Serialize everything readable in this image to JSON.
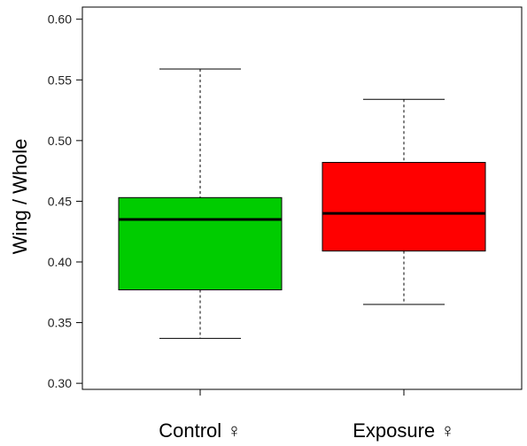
{
  "chart_data": {
    "type": "boxplot",
    "title": "",
    "xlabel": "",
    "ylabel": "Wing / Whole",
    "ylim": [
      0.295,
      0.61
    ],
    "yticks": [
      "0.30",
      "0.35",
      "0.40",
      "0.45",
      "0.50",
      "0.55",
      "0.60"
    ],
    "grid": false,
    "legend": "none",
    "categories": [
      "Control ♀",
      "Exposure ♀"
    ],
    "boxes": [
      {
        "category": "Control ♀",
        "min": 0.337,
        "q1": 0.377,
        "median": 0.435,
        "q3": 0.453,
        "max": 0.559,
        "color": "#00cc00"
      },
      {
        "category": "Exposure ♀",
        "min": 0.365,
        "q1": 0.409,
        "median": 0.44,
        "q3": 0.482,
        "max": 0.534,
        "color": "#ff0000"
      }
    ]
  }
}
